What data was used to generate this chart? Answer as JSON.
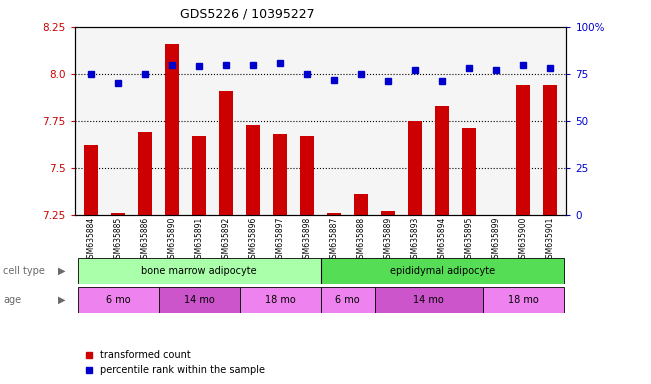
{
  "title": "GDS5226 / 10395227",
  "samples": [
    "GSM635884",
    "GSM635885",
    "GSM635886",
    "GSM635890",
    "GSM635891",
    "GSM635892",
    "GSM635896",
    "GSM635897",
    "GSM635898",
    "GSM635887",
    "GSM635888",
    "GSM635889",
    "GSM635893",
    "GSM635894",
    "GSM635895",
    "GSM635899",
    "GSM635900",
    "GSM635901"
  ],
  "red_values": [
    7.62,
    7.26,
    7.69,
    8.16,
    7.67,
    7.91,
    7.73,
    7.68,
    7.67,
    7.26,
    7.36,
    7.27,
    7.75,
    7.83,
    7.71,
    7.25,
    7.94,
    7.94
  ],
  "blue_values": [
    75,
    70,
    75,
    80,
    79,
    80,
    80,
    81,
    75,
    72,
    75,
    71,
    77,
    71,
    78,
    77,
    80,
    78
  ],
  "ylim_left": [
    7.25,
    8.25
  ],
  "ylim_right": [
    0,
    100
  ],
  "yticks_left": [
    7.25,
    7.5,
    7.75,
    8.0,
    8.25
  ],
  "yticks_right": [
    0,
    25,
    50,
    75,
    100
  ],
  "hlines": [
    8.0,
    7.75,
    7.5
  ],
  "cell_type_labels": [
    {
      "label": "bone marrow adipocyte",
      "start": 0,
      "end": 8,
      "color": "#aaffaa"
    },
    {
      "label": "epididymal adipocyte",
      "start": 9,
      "end": 17,
      "color": "#55dd55"
    }
  ],
  "age_labels": [
    {
      "label": "6 mo",
      "start": 0,
      "end": 2,
      "color": "#ee82ee"
    },
    {
      "label": "14 mo",
      "start": 3,
      "end": 5,
      "color": "#cc55cc"
    },
    {
      "label": "18 mo",
      "start": 6,
      "end": 8,
      "color": "#ee82ee"
    },
    {
      "label": "6 mo",
      "start": 9,
      "end": 10,
      "color": "#ee82ee"
    },
    {
      "label": "14 mo",
      "start": 11,
      "end": 14,
      "color": "#cc55cc"
    },
    {
      "label": "18 mo",
      "start": 15,
      "end": 17,
      "color": "#ee82ee"
    }
  ],
  "bar_color": "#cc0000",
  "dot_color": "#0000cc",
  "legend_red": "transformed count",
  "legend_blue": "percentile rank within the sample",
  "cell_type_row_label": "cell type",
  "age_row_label": "age",
  "fig_width": 6.51,
  "fig_height": 3.84,
  "dpi": 100
}
